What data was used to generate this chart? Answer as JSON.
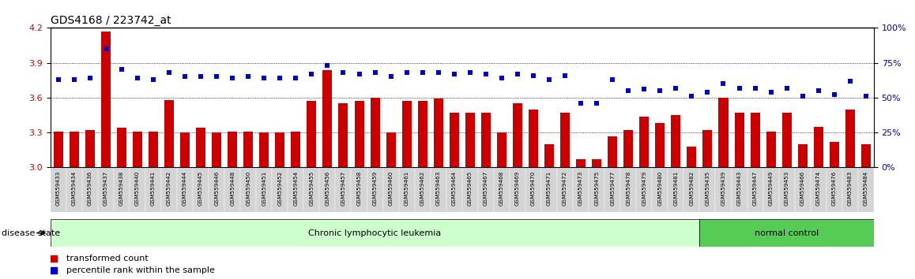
{
  "title": "GDS4168 / 223742_at",
  "samples": [
    "GSM559433",
    "GSM559434",
    "GSM559436",
    "GSM559437",
    "GSM559438",
    "GSM559440",
    "GSM559441",
    "GSM559442",
    "GSM559444",
    "GSM559445",
    "GSM559446",
    "GSM559448",
    "GSM559450",
    "GSM559451",
    "GSM559452",
    "GSM559454",
    "GSM559455",
    "GSM559456",
    "GSM559457",
    "GSM559458",
    "GSM559459",
    "GSM559460",
    "GSM559461",
    "GSM559462",
    "GSM559463",
    "GSM559464",
    "GSM559465",
    "GSM559467",
    "GSM559468",
    "GSM559469",
    "GSM559470",
    "GSM559471",
    "GSM559472",
    "GSM559473",
    "GSM559475",
    "GSM559477",
    "GSM559478",
    "GSM559479",
    "GSM559480",
    "GSM559481",
    "GSM559482",
    "GSM559435",
    "GSM559439",
    "GSM559443",
    "GSM559447",
    "GSM559449",
    "GSM559453",
    "GSM559466",
    "GSM559474",
    "GSM559476",
    "GSM559483",
    "GSM559484"
  ],
  "transformed_count": [
    3.31,
    3.31,
    3.32,
    4.17,
    3.34,
    3.31,
    3.31,
    3.58,
    3.3,
    3.34,
    3.3,
    3.31,
    3.31,
    3.3,
    3.3,
    3.31,
    3.57,
    3.84,
    3.55,
    3.57,
    3.6,
    3.3,
    3.57,
    3.57,
    3.59,
    3.47,
    3.47,
    3.47,
    3.3,
    3.55,
    3.5,
    3.2,
    3.47,
    3.07,
    3.07,
    3.27,
    3.32,
    3.44,
    3.38,
    3.45,
    3.18,
    3.32,
    3.6,
    3.47,
    3.47,
    3.31,
    3.47,
    3.2,
    3.35,
    3.22,
    3.5,
    3.2
  ],
  "percentile_rank": [
    63,
    63,
    64,
    85,
    70,
    64,
    63,
    68,
    65,
    65,
    65,
    64,
    65,
    64,
    64,
    64,
    67,
    73,
    68,
    67,
    68,
    65,
    68,
    68,
    68,
    67,
    68,
    67,
    64,
    67,
    66,
    63,
    66,
    46,
    46,
    63,
    55,
    56,
    55,
    57,
    51,
    54,
    60,
    57,
    57,
    54,
    57,
    51,
    55,
    52,
    62,
    51
  ],
  "disease_groups": [
    {
      "label": "Chronic lymphocytic leukemia",
      "start": 0,
      "end": 41,
      "color": "#ccffcc"
    },
    {
      "label": "normal control",
      "start": 41,
      "end": 52,
      "color": "#55cc55"
    }
  ],
  "ylim_left": [
    3.0,
    4.2
  ],
  "ylim_right": [
    0,
    100
  ],
  "yticks_left": [
    3.0,
    3.3,
    3.6,
    3.9,
    4.2
  ],
  "yticks_right": [
    0,
    25,
    50,
    75,
    100
  ],
  "bar_color": "#cc0000",
  "dot_color": "#0000cc",
  "background_color": "#ffffff",
  "grid_color": "#555555",
  "tick_label_color_left": "#cc0000",
  "tick_label_color_right": "#0000cc",
  "legend_items": [
    {
      "label": "transformed count",
      "color": "#cc0000"
    },
    {
      "label": "percentile rank within the sample",
      "color": "#0000cc"
    }
  ],
  "disease_state_label": "disease state"
}
